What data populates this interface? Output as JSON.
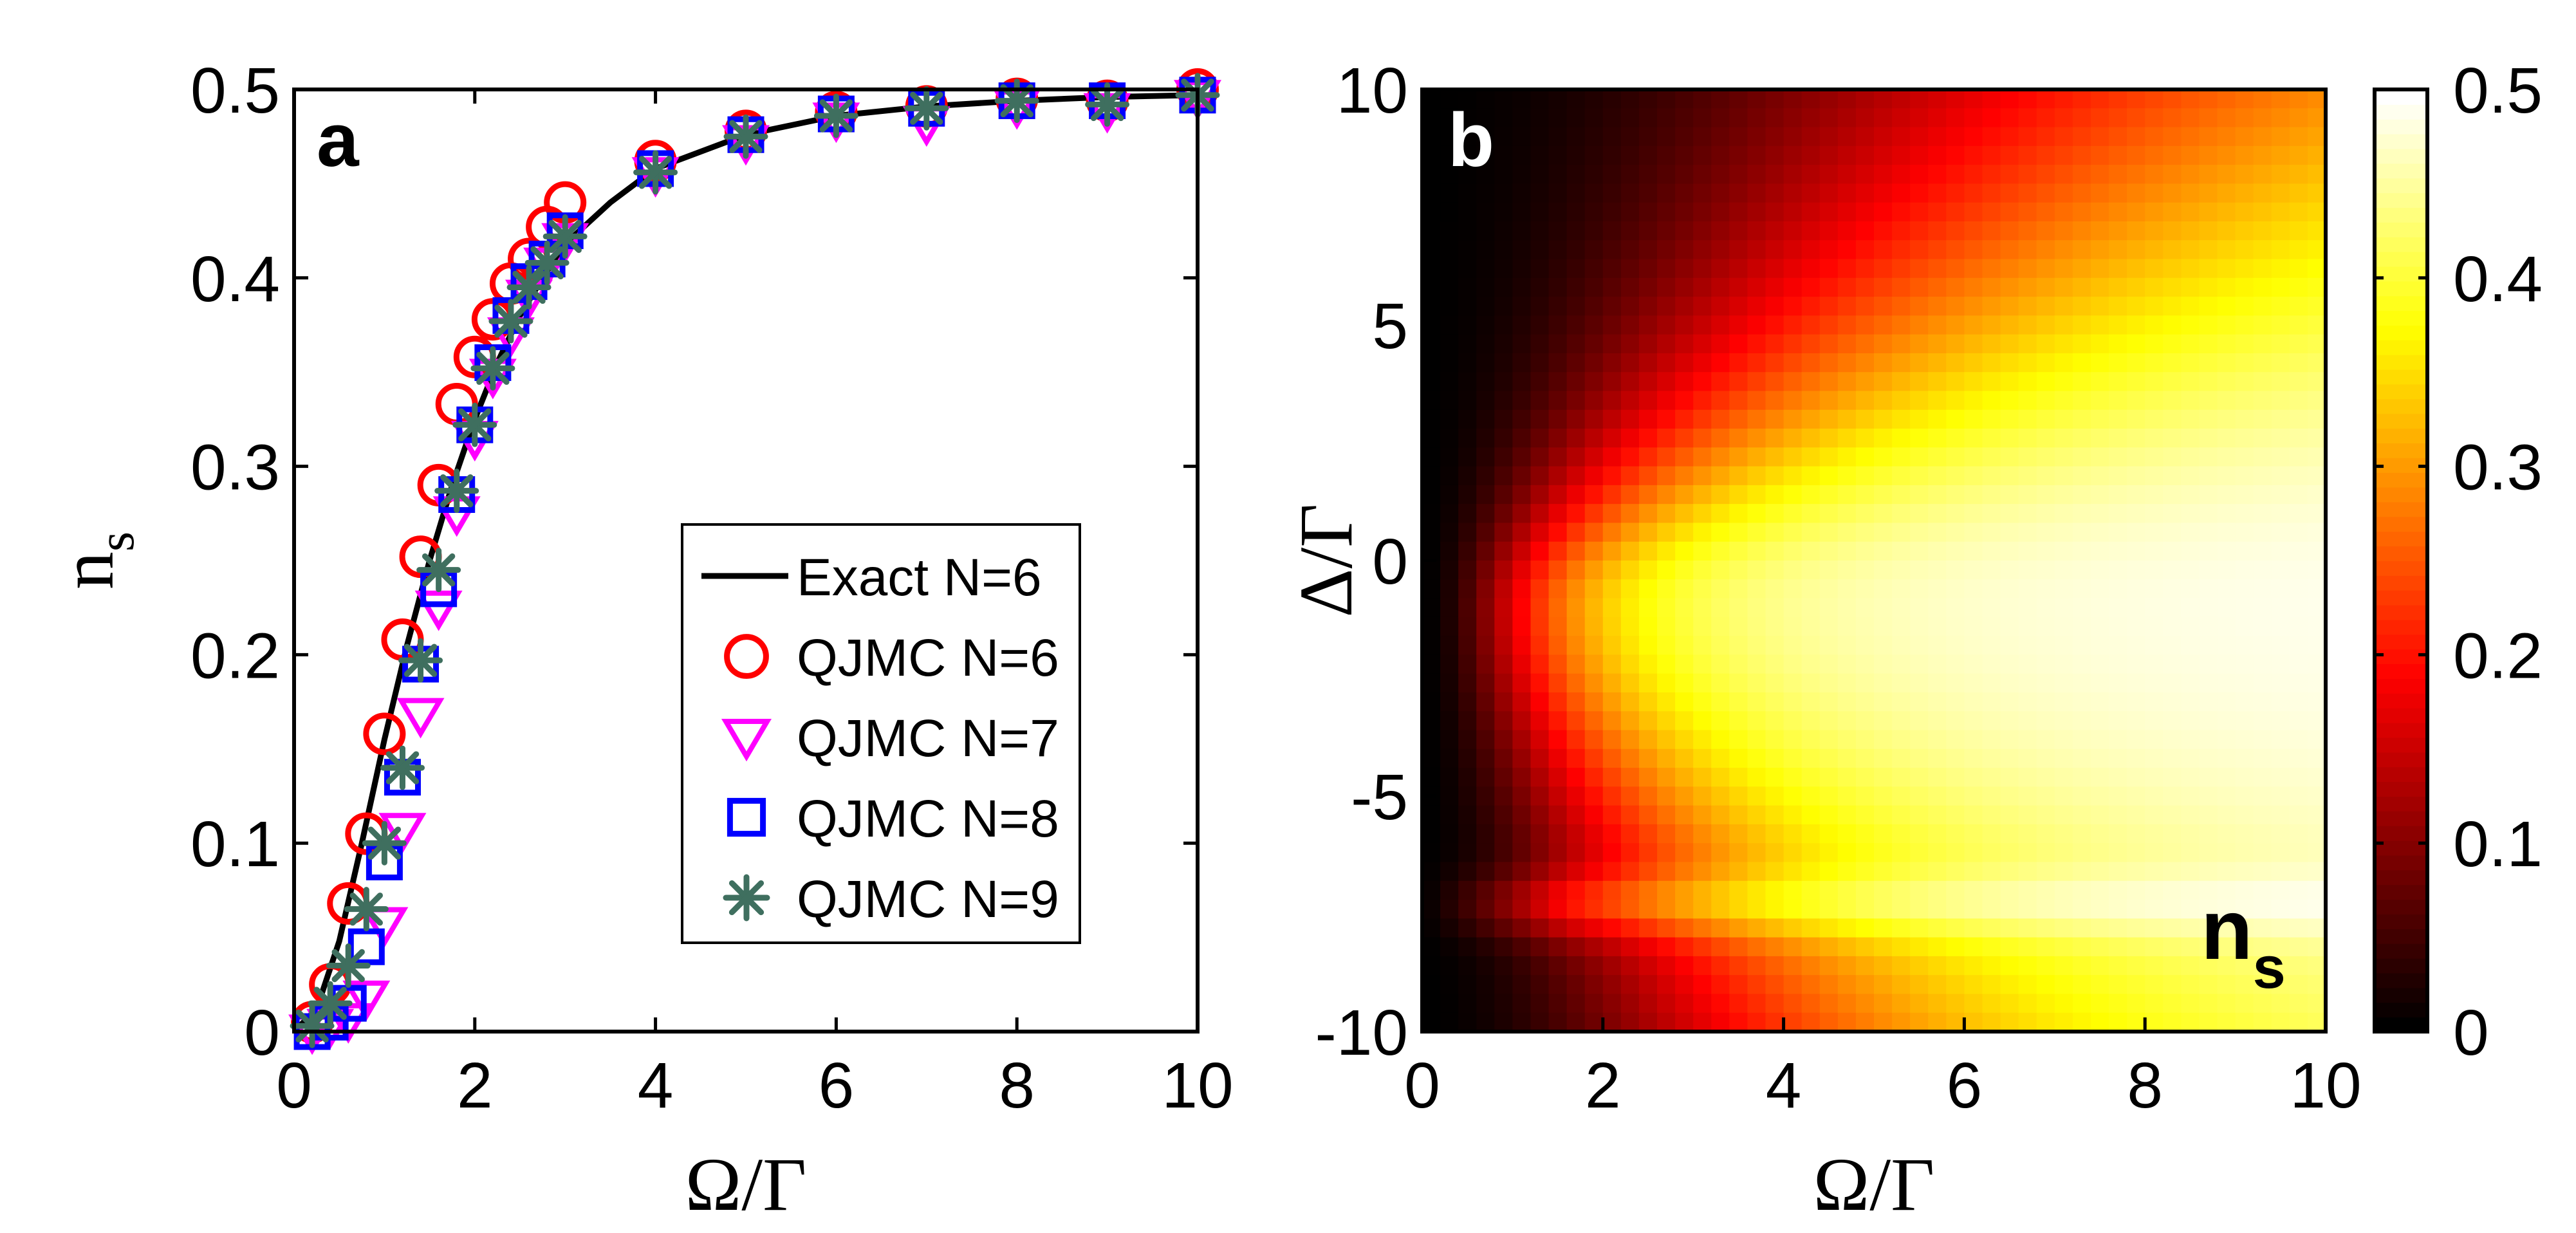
{
  "chart_data": [
    {
      "panel_label": "a",
      "type": "scatter",
      "xlabel": "Ω/Γ",
      "ylabel": "n",
      "ylabel_sub": "s",
      "xlim": [
        0,
        10
      ],
      "ylim": [
        0,
        0.5
      ],
      "xticks": [
        "0",
        "2",
        "4",
        "6",
        "8",
        "10"
      ],
      "yticks": [
        "0",
        "0.1",
        "0.2",
        "0.3",
        "0.4",
        "0.5"
      ],
      "legend_position": "lower-right",
      "series": [
        {
          "name": "Exact N=6",
          "kind": "line",
          "color": "#000000",
          "x": [
            0,
            0.25,
            0.5,
            0.75,
            1.0,
            1.25,
            1.5,
            1.75,
            2.0,
            2.25,
            2.5,
            2.75,
            3.0,
            3.5,
            4.0,
            5.0,
            6.0,
            7.0,
            8.0,
            9.0,
            10.0
          ],
          "y": [
            0,
            0.012,
            0.048,
            0.1,
            0.155,
            0.205,
            0.25,
            0.29,
            0.325,
            0.355,
            0.38,
            0.4,
            0.418,
            0.44,
            0.458,
            0.476,
            0.486,
            0.491,
            0.494,
            0.496,
            0.497
          ]
        },
        {
          "name": "QJMC N=6",
          "kind": "marker",
          "marker": "circle",
          "color": "#ff0000",
          "x": [
            0.2,
            0.4,
            0.6,
            0.8,
            1.0,
            1.2,
            1.4,
            1.6,
            1.8,
            2.0,
            2.2,
            2.4,
            2.6,
            2.8,
            3.0,
            4.0,
            5.0,
            6.0,
            7.0,
            8.0,
            9.0,
            10.0
          ],
          "y": [
            0.005,
            0.025,
            0.068,
            0.105,
            0.158,
            0.208,
            0.252,
            0.29,
            0.333,
            0.358,
            0.378,
            0.397,
            0.41,
            0.427,
            0.44,
            0.462,
            0.478,
            0.488,
            0.491,
            0.495,
            0.494,
            0.5
          ]
        },
        {
          "name": "QJMC N=7",
          "kind": "marker",
          "marker": "triangle-down",
          "color": "#ff00ff",
          "x": [
            0.2,
            0.4,
            0.6,
            0.8,
            1.0,
            1.2,
            1.4,
            1.6,
            1.8,
            2.0,
            2.2,
            2.4,
            2.6,
            2.8,
            3.0,
            4.0,
            5.0,
            6.0,
            7.0,
            8.0,
            9.0,
            10.0
          ],
          "y": [
            0.0,
            0.003,
            0.006,
            0.018,
            0.057,
            0.107,
            0.168,
            0.225,
            0.275,
            0.315,
            0.348,
            0.37,
            0.39,
            0.407,
            0.42,
            0.455,
            0.472,
            0.484,
            0.482,
            0.491,
            0.489,
            0.496
          ]
        },
        {
          "name": "QJMC N=8",
          "kind": "marker",
          "marker": "square",
          "color": "#0000ff",
          "x": [
            0.2,
            0.4,
            0.6,
            0.8,
            1.0,
            1.2,
            1.4,
            1.6,
            1.8,
            2.0,
            2.2,
            2.4,
            2.6,
            2.8,
            3.0,
            4.0,
            5.0,
            6.0,
            7.0,
            8.0,
            9.0,
            10.0
          ],
          "y": [
            0.0,
            0.005,
            0.015,
            0.045,
            0.09,
            0.135,
            0.195,
            0.235,
            0.285,
            0.322,
            0.355,
            0.38,
            0.398,
            0.41,
            0.425,
            0.458,
            0.476,
            0.487,
            0.49,
            0.494,
            0.494,
            0.497
          ]
        },
        {
          "name": "QJMC N=9",
          "kind": "marker",
          "marker": "asterisk",
          "color": "#3f6f5f",
          "x": [
            0.2,
            0.4,
            0.6,
            0.8,
            1.0,
            1.2,
            1.4,
            1.6,
            1.8,
            2.0,
            2.2,
            2.4,
            2.6,
            2.8,
            3.0,
            4.0,
            5.0,
            6.0,
            7.0,
            8.0,
            9.0,
            10.0
          ],
          "y": [
            0.003,
            0.015,
            0.035,
            0.065,
            0.1,
            0.14,
            0.197,
            0.245,
            0.287,
            0.322,
            0.352,
            0.377,
            0.395,
            0.408,
            0.422,
            0.456,
            0.475,
            0.486,
            0.49,
            0.494,
            0.492,
            0.497
          ]
        }
      ]
    },
    {
      "panel_label": "b",
      "type": "heatmap",
      "xlabel": "Ω/Γ",
      "ylabel": "Δ/Γ",
      "xlim": [
        0,
        10
      ],
      "ylim": [
        -10,
        10
      ],
      "xticks": [
        "0",
        "2",
        "4",
        "6",
        "8",
        "10"
      ],
      "yticks": [
        "-10",
        "-5",
        "0",
        "5",
        "10"
      ],
      "value_label": "n",
      "value_label_sub": "s",
      "colormap": "hot",
      "colorbar_range": [
        0,
        0.5
      ],
      "colorbar_ticks": [
        "0",
        "0.1",
        "0.2",
        "0.3",
        "0.4",
        "0.5"
      ],
      "grid_size": [
        50,
        50
      ],
      "model": {
        "saturation": 0.5,
        "width_scale": 0.5,
        "center_delta": -1,
        "asym_upper": 1.4,
        "asym_lower": 0.85,
        "band_delta": -7.3,
        "band_strength": 0.35,
        "band_width": 0.7
      }
    }
  ]
}
